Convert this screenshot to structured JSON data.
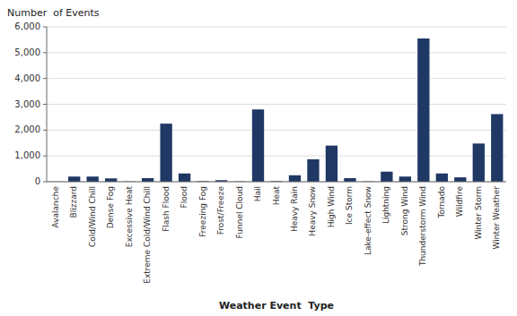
{
  "chart_data": {
    "type": "bar",
    "categories": [
      "Avalanche",
      "Blizzard",
      "Cold/Wind Chill",
      "Dense Fog",
      "Excessive Heat",
      "Extreme Cold/Wind Chill",
      "Flash Flood",
      "Flood",
      "Freezing Fog",
      "Frost/Freeze",
      "Funnel Cloud",
      "Hail",
      "Heat",
      "Heavy Rain",
      "Heavy Snow",
      "High Wind",
      "Ice Storm",
      "Lake-effect Snow",
      "Lightning",
      "Strong Wind",
      "Thunderstorm Wind",
      "Tornado",
      "Wildfire",
      "Winter Storm",
      "Winter Weather"
    ],
    "values": [
      5,
      200,
      200,
      130,
      10,
      140,
      2250,
      320,
      20,
      60,
      10,
      2800,
      20,
      250,
      870,
      1400,
      140,
      10,
      390,
      200,
      5550,
      320,
      170,
      1480,
      2620
    ],
    "color": "#1F3864",
    "ylabel": "Number  of Events",
    "xlabel": "Weather Event  Type",
    "ylim": [
      0,
      6000
    ],
    "yticks": [
      0,
      {
        "value": 1000,
        "label": "1,000"
      },
      {
        "value": 2000,
        "label": "2,000"
      },
      {
        "value": 3000,
        "label": "3,000"
      },
      {
        "value": 4000,
        "label": "4,000"
      },
      {
        "value": 5000,
        "label": "5,000"
      },
      {
        "value": 6000,
        "label": "6,000"
      }
    ],
    "grid": true
  }
}
